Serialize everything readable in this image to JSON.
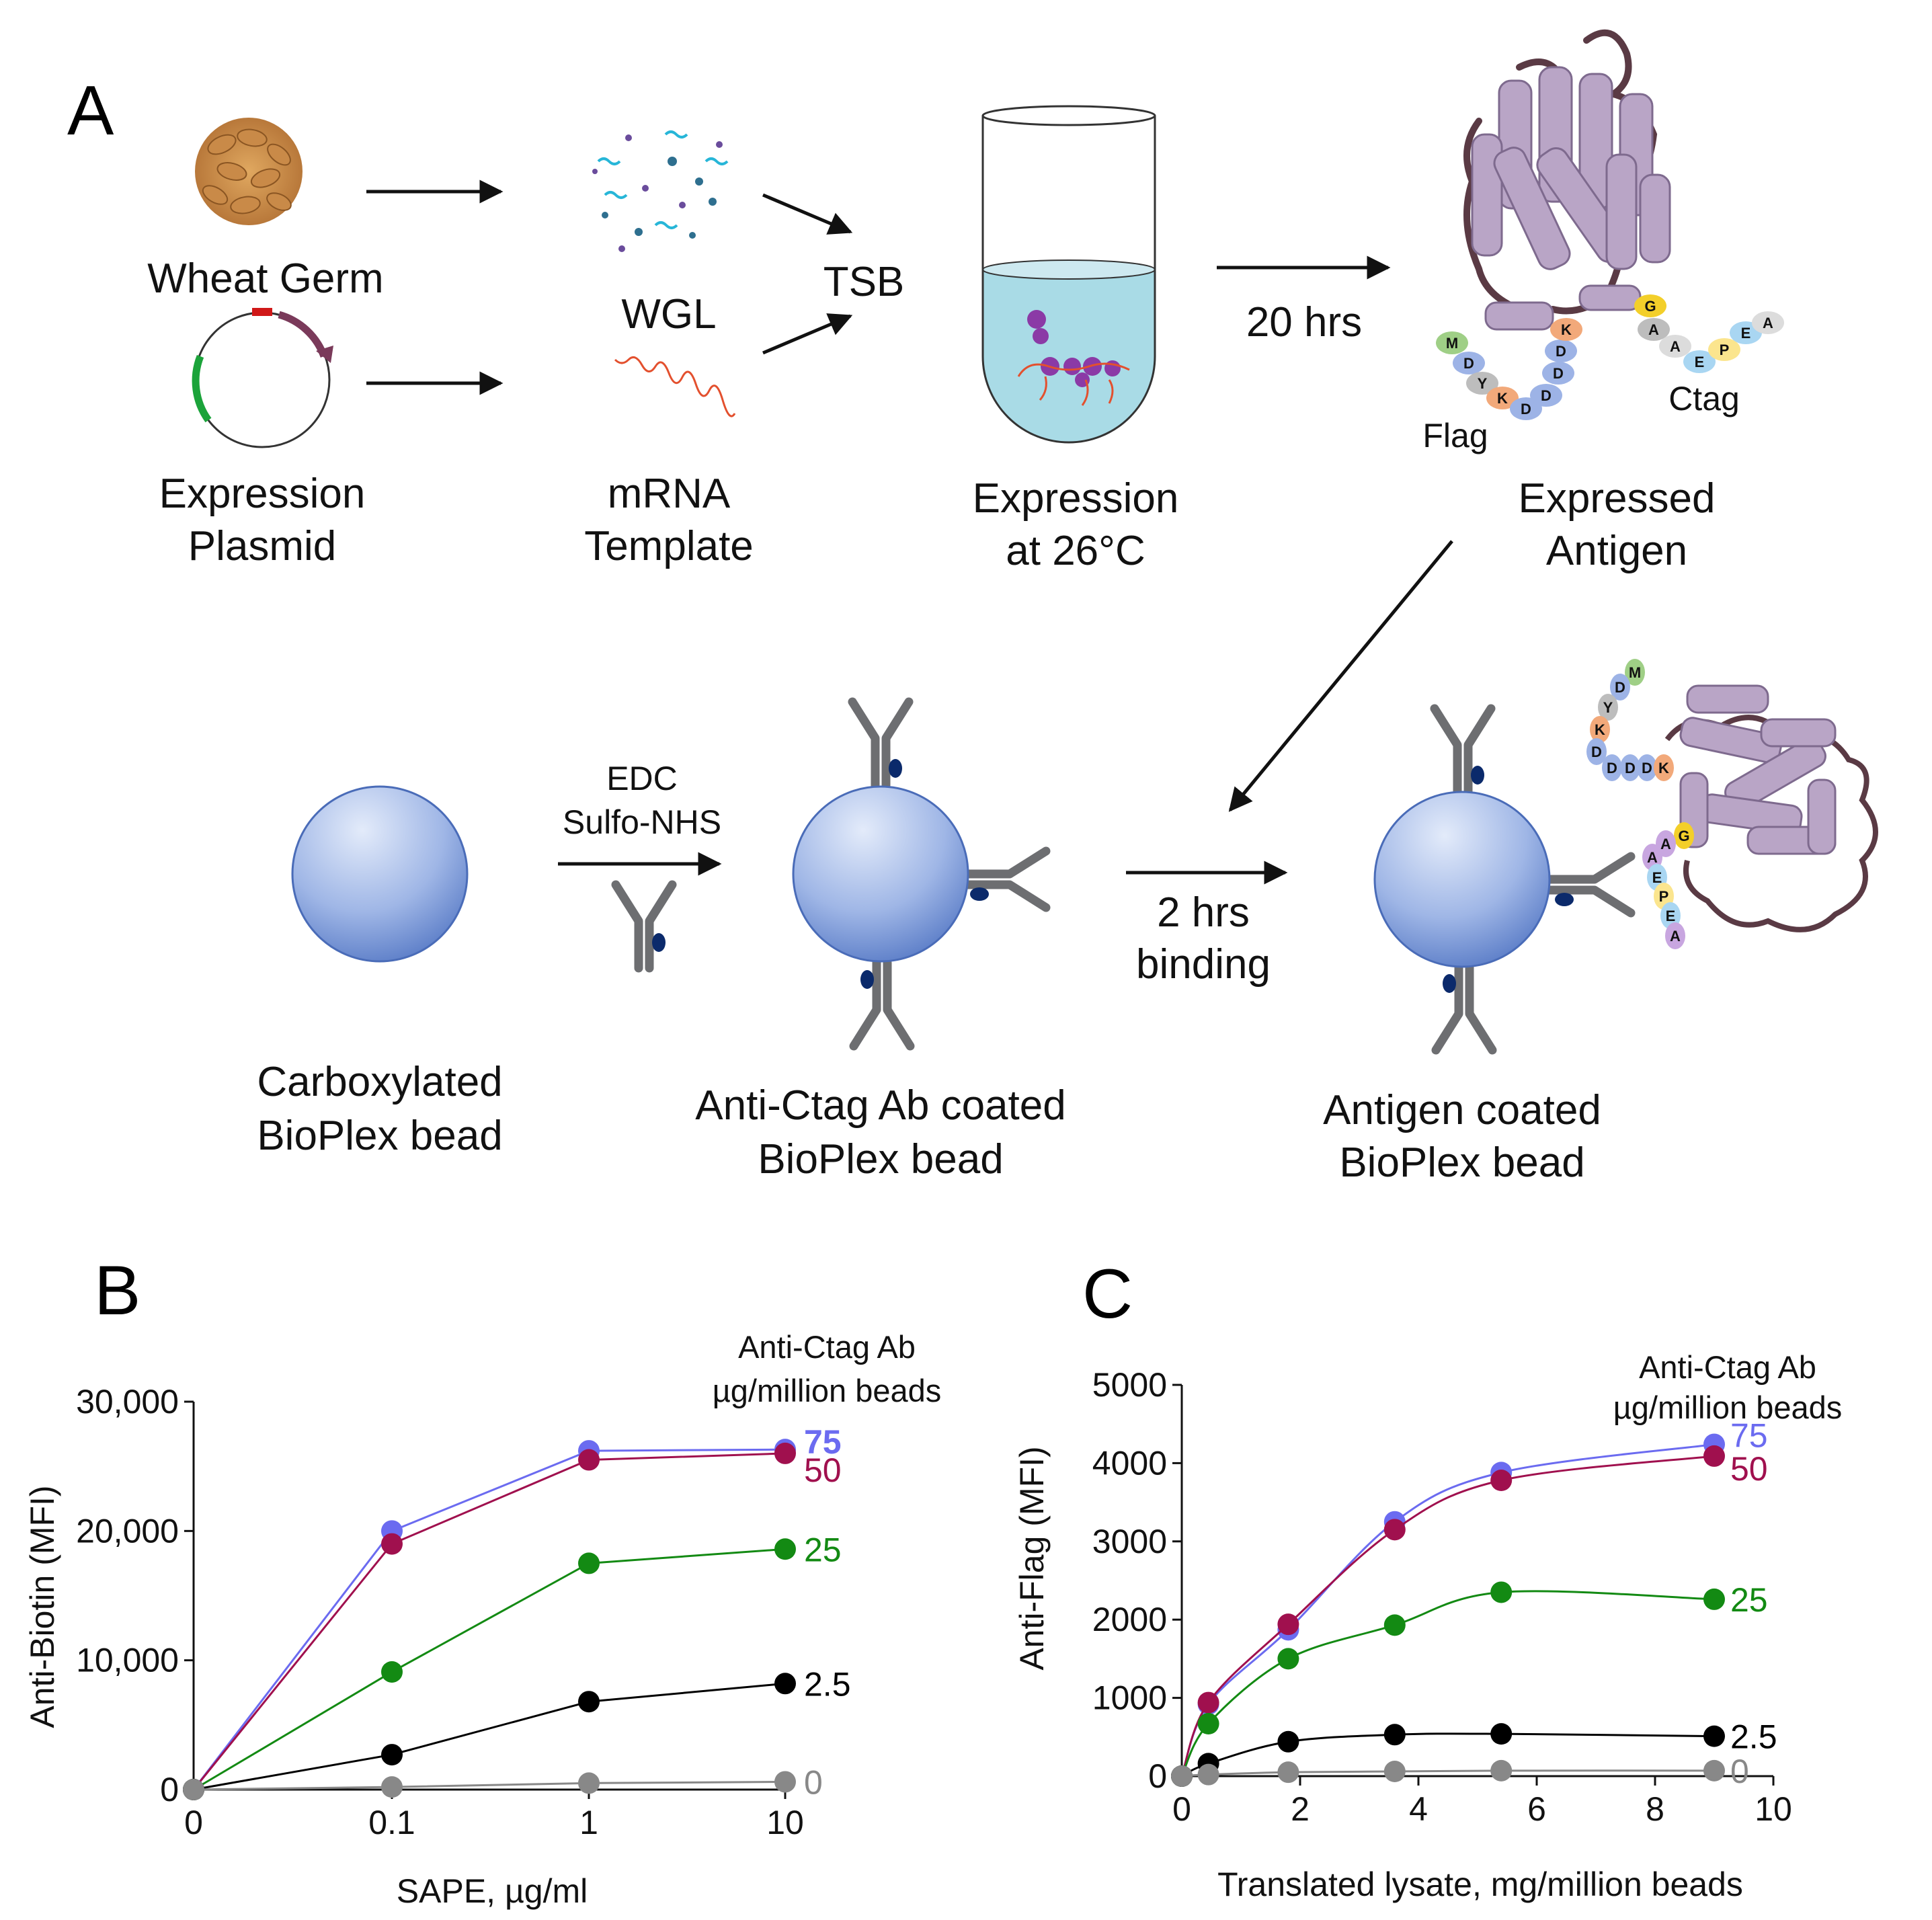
{
  "panels": {
    "a": "A",
    "b": "B",
    "c": "C"
  },
  "workflow": {
    "wheat_germ": "Wheat Germ",
    "plasmid_l1": "Expression",
    "plasmid_l2": "Plasmid",
    "wgl": "WGL",
    "mrna_l1": "mRNA",
    "mrna_l2": "Template",
    "tsb": "TSB",
    "expr_l1": "Expression",
    "expr_l2": "at 26°C",
    "time_expr": "20 hrs",
    "antigen_l1": "Expressed",
    "antigen_l2": "Antigen",
    "flag": "Flag",
    "ctag": "Ctag",
    "flag_seq": [
      "M",
      "D",
      "Y",
      "K",
      "D",
      "D",
      "D",
      "D",
      "K"
    ],
    "ctag_seq": [
      "G",
      "A",
      "A",
      "E",
      "P",
      "E",
      "A"
    ],
    "edc": "EDC",
    "sulfo": "Sulfo-NHS",
    "binding_l1": "2 hrs",
    "binding_l2": "binding",
    "bead1_l1": "Carboxylated",
    "bead1_l2": "BioPlex bead",
    "bead2_l1": "Anti-Ctag Ab coated",
    "bead2_l2": "BioPlex bead",
    "bead3_l1": "Antigen coated",
    "bead3_l2": "BioPlex bead"
  },
  "colors": {
    "ab75": "#6b6bf0",
    "ab50": "#a0104e",
    "ab25": "#138a13",
    "ab2_5": "#000000",
    "ab0": "#888888",
    "bead": "#5a80cc",
    "antibody": "#6d6e71",
    "protein": "#b9a5c6"
  },
  "chart_data": [
    {
      "type": "line",
      "x_scale": "categorical",
      "categories": [
        "0",
        "0.1",
        "1",
        "10"
      ],
      "xlabel": "SAPE, µg/ml",
      "ylabel": "Anti-Biotin (MFI)",
      "ylim": [
        0,
        30000
      ],
      "yticks": [
        "0",
        "10,000",
        "20,000",
        "30,000"
      ],
      "legend_title_l1": "Anti-Ctag Ab",
      "legend_title_l2": "µg/million beads",
      "series": [
        {
          "name": "75",
          "values": [
            0,
            20000,
            26200,
            26300
          ],
          "color_key": "ab75"
        },
        {
          "name": "50",
          "values": [
            0,
            19000,
            25500,
            26000
          ],
          "color_key": "ab50"
        },
        {
          "name": "25",
          "values": [
            0,
            9100,
            17500,
            18600
          ],
          "color_key": "ab25"
        },
        {
          "name": "2.5",
          "values": [
            0,
            2700,
            6800,
            8200
          ],
          "color_key": "ab2_5"
        },
        {
          "name": "0",
          "values": [
            0,
            200,
            500,
            600
          ],
          "color_key": "ab0"
        }
      ]
    },
    {
      "type": "line",
      "x": [
        0,
        0.45,
        1.8,
        3.6,
        5.4,
        9
      ],
      "xlabel": "Translated lysate, mg/million beads",
      "ylabel": "Anti-Flag (MFI)",
      "xlim": [
        0,
        10
      ],
      "ylim": [
        0,
        5000
      ],
      "xticks": [
        "0",
        "2",
        "4",
        "6",
        "8",
        "10"
      ],
      "yticks": [
        "0",
        "1000",
        "2000",
        "3000",
        "4000",
        "5000"
      ],
      "legend_title_l1": "Anti-Ctag Ab",
      "legend_title_l2": "µg/million beads",
      "series": [
        {
          "name": "75",
          "values": [
            0,
            920,
            1870,
            3250,
            3880,
            4240
          ],
          "color_key": "ab75"
        },
        {
          "name": "50",
          "values": [
            0,
            940,
            1940,
            3150,
            3780,
            4090
          ],
          "color_key": "ab50"
        },
        {
          "name": "25",
          "values": [
            0,
            670,
            1500,
            1930,
            2350,
            2260
          ],
          "color_key": "ab25"
        },
        {
          "name": "2.5",
          "values": [
            0,
            160,
            440,
            530,
            540,
            510
          ],
          "color_key": "ab2_5"
        },
        {
          "name": "0",
          "values": [
            0,
            20,
            50,
            60,
            70,
            70
          ],
          "color_key": "ab0"
        }
      ]
    }
  ]
}
